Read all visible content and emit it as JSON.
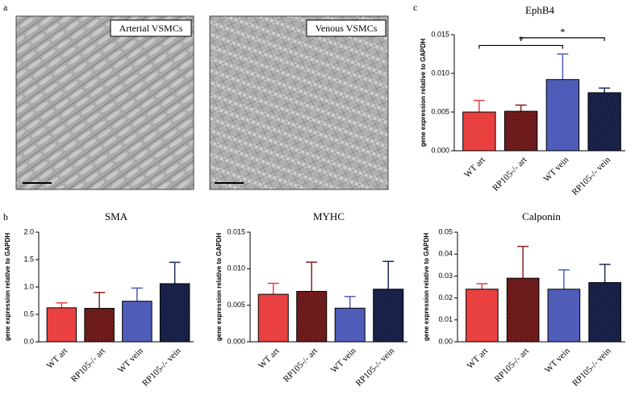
{
  "figure": {
    "panel_labels": [
      "a",
      "b",
      "c"
    ],
    "images": [
      {
        "label": "Arterial VSMCs"
      },
      {
        "label": "Venous VSMCs"
      }
    ]
  },
  "chart_data": [
    {
      "type": "bar",
      "title": "EphB4",
      "ylabel": "gene expression relative to GAPDH",
      "categories": [
        "WT art",
        "RP105-/- art",
        "WT vein",
        "RP105-/- vein"
      ],
      "values": [
        0.005,
        0.0051,
        0.0092,
        0.0075
      ],
      "errors": [
        0.0015,
        0.0008,
        0.0033,
        0.0006
      ],
      "colors": [
        "#e8413f",
        "#8b2222",
        "#4f5cb8",
        "#1f2a5c"
      ],
      "hatch": [
        false,
        true,
        false,
        true
      ],
      "ylim": [
        0,
        0.015
      ],
      "yticks": [
        {
          "value": 0,
          "label": "0.000"
        },
        {
          "value": 0.005,
          "label": "0.005"
        },
        {
          "value": 0.01,
          "label": "0.010"
        },
        {
          "value": 0.015,
          "label": "0.015"
        }
      ],
      "brackets": [
        {
          "from": "WT art",
          "to": "WT vein",
          "level": 0.0136,
          "label": "*"
        },
        {
          "from": "RP105-/- art",
          "to": "RP105-/- vein",
          "level": 0.0146,
          "label": "*"
        }
      ]
    },
    {
      "type": "bar",
      "title": "SMA",
      "ylabel": "gene expression relative to GAPDH",
      "categories": [
        "WT art",
        "RP105-/- art",
        "WT vein",
        "RP105-/- vein"
      ],
      "values": [
        0.62,
        0.61,
        0.74,
        1.06
      ],
      "errors": [
        0.09,
        0.29,
        0.24,
        0.39
      ],
      "colors": [
        "#e8413f",
        "#8b2222",
        "#4f5cb8",
        "#1f2a5c"
      ],
      "hatch": [
        false,
        true,
        false,
        true
      ],
      "ylim": [
        0,
        2
      ],
      "yticks": [
        {
          "value": 0,
          "label": "0.0"
        },
        0.5,
        {
          "value": 1,
          "label": "1.0"
        },
        1.5,
        {
          "value": 2,
          "label": "2.0"
        }
      ]
    },
    {
      "type": "bar",
      "title": "MYHC",
      "ylabel": "gene expression relative to GAPDH",
      "categories": [
        "WT art",
        "RP105-/- art",
        "WT vein",
        "RP105-/- vein"
      ],
      "values": [
        0.0065,
        0.0069,
        0.0046,
        0.0072
      ],
      "errors": [
        0.0015,
        0.004,
        0.0016,
        0.0038
      ],
      "colors": [
        "#e8413f",
        "#8b2222",
        "#4f5cb8",
        "#1f2a5c"
      ],
      "hatch": [
        false,
        true,
        false,
        true
      ],
      "ylim": [
        0,
        0.015
      ],
      "yticks": [
        {
          "value": 0,
          "label": "0.000"
        },
        {
          "value": 0.005,
          "label": "0.005"
        },
        {
          "value": 0.01,
          "label": "0.010"
        },
        {
          "value": 0.015,
          "label": "0.015"
        }
      ]
    },
    {
      "type": "bar",
      "title": "Calponin",
      "ylabel": "gene expression relative to GAPDH",
      "categories": [
        "WT art",
        "RP105-/- art",
        "WT vein",
        "RP105-/- vein"
      ],
      "values": [
        0.024,
        0.029,
        0.024,
        0.027
      ],
      "errors": [
        0.0025,
        0.0145,
        0.0088,
        0.0083
      ],
      "colors": [
        "#e8413f",
        "#8b2222",
        "#4f5cb8",
        "#1f2a5c"
      ],
      "hatch": [
        false,
        true,
        false,
        true
      ],
      "ylim": [
        0,
        0.05
      ],
      "yticks": [
        {
          "value": 0,
          "label": "0.00"
        },
        0.01,
        0.02,
        0.03,
        0.04,
        0.05
      ]
    }
  ]
}
